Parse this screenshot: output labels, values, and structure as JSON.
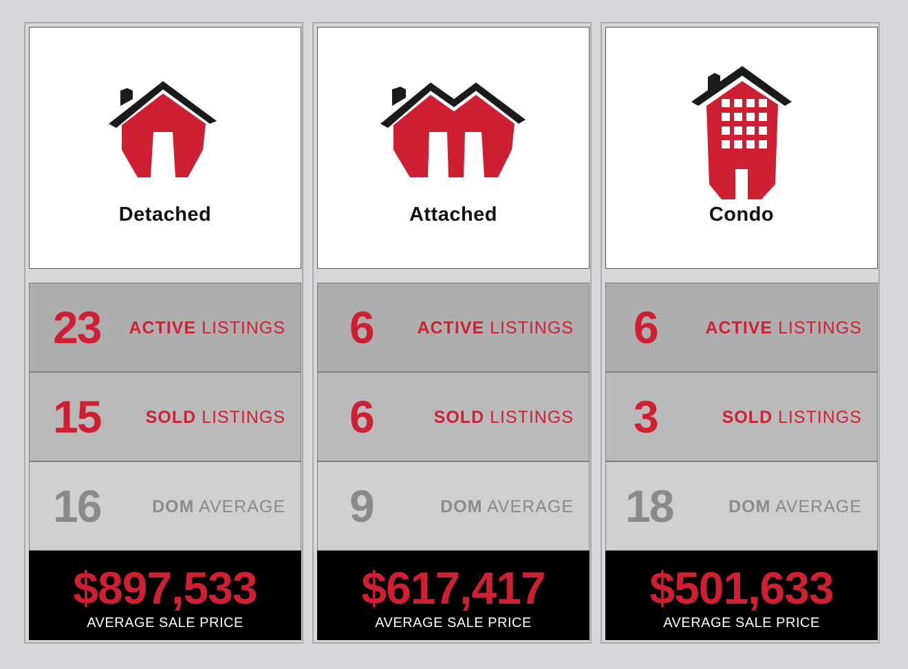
{
  "columns": [
    {
      "type": "Detached",
      "active": {
        "value": "23",
        "label_bold": "ACTIVE",
        "label_rest": " LISTINGS"
      },
      "sold": {
        "value": "15",
        "label_bold": "SOLD",
        "label_rest": " LISTINGS"
      },
      "dom": {
        "value": "16",
        "label_bold": "DOM",
        "label_rest": " AVERAGE"
      },
      "price": {
        "value": "$897,533",
        "label": "AVERAGE SALE PRICE"
      },
      "icon": "detached-house-icon"
    },
    {
      "type": "Attached",
      "active": {
        "value": "6",
        "label_bold": "ACTIVE",
        "label_rest": " LISTINGS"
      },
      "sold": {
        "value": "6",
        "label_bold": "SOLD",
        "label_rest": " LISTINGS"
      },
      "dom": {
        "value": "9",
        "label_bold": "DOM",
        "label_rest": " AVERAGE"
      },
      "price": {
        "value": "$617,417",
        "label": "AVERAGE SALE PRICE"
      },
      "icon": "attached-house-icon"
    },
    {
      "type": "Condo",
      "active": {
        "value": "6",
        "label_bold": "ACTIVE",
        "label_rest": " LISTINGS"
      },
      "sold": {
        "value": "3",
        "label_bold": "SOLD",
        "label_rest": " LISTINGS"
      },
      "dom": {
        "value": "18",
        "label_bold": "DOM",
        "label_rest": " AVERAGE"
      },
      "price": {
        "value": "$501,633",
        "label": "AVERAGE SALE PRICE"
      },
      "icon": "condo-building-icon"
    }
  ],
  "colors": {
    "accent": "#cf1f33",
    "muted": "#8a8a8a",
    "roof": "#1a1a1a"
  }
}
